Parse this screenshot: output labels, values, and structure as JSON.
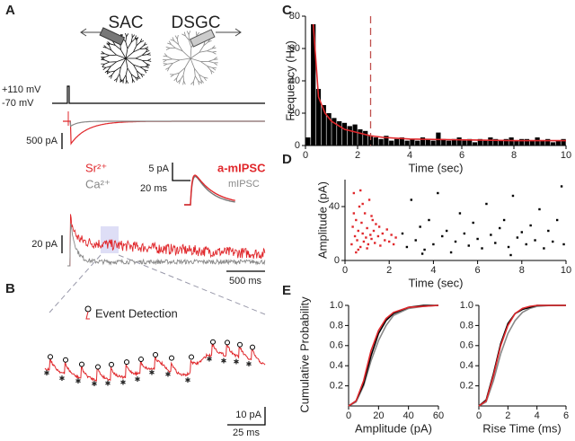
{
  "panel_labels": [
    "A",
    "B",
    "C",
    "D",
    "E"
  ],
  "panel_a": {
    "cells": [
      "SAC",
      "DSGC"
    ],
    "voltage_levels": [
      "+110 mV",
      "-70 mV"
    ],
    "current_scale": "500 pA",
    "ions": [
      "Sr²⁺",
      "Ca²⁺"
    ],
    "inset_scale": [
      "5 pA",
      "20 ms"
    ],
    "inset_legend": [
      "a-mIPSC",
      "mIPSC"
    ],
    "trace_scale": [
      "20 pA",
      "500 ms"
    ]
  },
  "panel_b": {
    "legend": "Event Detection",
    "scale": [
      "10 pA",
      "25 ms"
    ]
  },
  "chart_data": [
    {
      "type": "histogram",
      "xlabel": "Time (sec)",
      "ylabel": "Frequency (Hz)",
      "color": "#000000",
      "bins": [
        0,
        0.2,
        0.4,
        0.6,
        0.8,
        1,
        1.2,
        1.4,
        1.6,
        1.8,
        2,
        2.2,
        2.4,
        2.6,
        2.8,
        3,
        3.2,
        3.4,
        3.6,
        3.8,
        4,
        4.2,
        4.4,
        4.6,
        4.8,
        5,
        5.2,
        5.4,
        5.6,
        5.8,
        6,
        6.2,
        6.4,
        6.6,
        6.8,
        7,
        7.2,
        7.4,
        7.6,
        7.8,
        8,
        8.2,
        8.4,
        8.6,
        8.8,
        9,
        9.2,
        9.4,
        9.6,
        9.8,
        10
      ],
      "counts": [
        5,
        75,
        35,
        25,
        20,
        17,
        15,
        14,
        12,
        13,
        10,
        9,
        6,
        5,
        4,
        6,
        3,
        4,
        5,
        3,
        4,
        3,
        5,
        4,
        3,
        8,
        4,
        3,
        4,
        5,
        3,
        4,
        2,
        4,
        3,
        5,
        4,
        3,
        4,
        5,
        3,
        4,
        4,
        3,
        5,
        3,
        4,
        2,
        3,
        4
      ],
      "series": [
        {
          "color": "#e0272b",
          "x": [
            0.3,
            0.5,
            0.75,
            1,
            1.5,
            2,
            2.5,
            3,
            4,
            6,
            8,
            10
          ],
          "values": [
            75,
            30,
            20,
            15,
            10,
            8,
            6,
            5,
            4,
            3.5,
            3,
            3
          ]
        }
      ],
      "vline": 2.5,
      "vline_color": "#c0504d",
      "xlim": [
        0,
        10
      ],
      "xticks": [
        0,
        2,
        4,
        6,
        8,
        10
      ],
      "ylim": [
        0,
        80
      ],
      "yticks": [
        0,
        20,
        40,
        60,
        80
      ]
    },
    {
      "type": "scatter",
      "xlabel": "Time (sec)",
      "ylabel": "Amplitude (pA)",
      "series": [
        {
          "color": "#e0272b",
          "x": [
            0.3,
            0.35,
            0.4,
            0.45,
            0.5,
            0.55,
            0.6,
            0.65,
            0.7,
            0.75,
            0.8,
            0.85,
            0.9,
            0.95,
            1.0,
            1.05,
            1.1,
            1.15,
            1.2,
            1.25,
            1.3,
            1.35,
            1.4,
            1.5,
            1.55,
            1.6,
            1.7,
            1.8,
            1.9,
            2.0,
            2.1,
            2.2,
            2.3,
            0.4,
            0.6,
            0.8,
            1.0,
            1.2,
            0.5,
            0.7
          ],
          "values": [
            12,
            25,
            50,
            18,
            30,
            15,
            22,
            40,
            10,
            28,
            20,
            14,
            35,
            17,
            24,
            12,
            45,
            19,
            16,
            30,
            22,
            13,
            27,
            18,
            25,
            11,
            20,
            15,
            23,
            14,
            19,
            12,
            17,
            35,
            8,
            42,
            9,
            33,
            6,
            52
          ]
        },
        {
          "color": "#000000",
          "x": [
            2.6,
            2.8,
            3.0,
            3.2,
            3.4,
            3.6,
            3.8,
            4.0,
            4.2,
            4.4,
            4.6,
            4.8,
            5.0,
            5.2,
            5.4,
            5.6,
            5.8,
            6.0,
            6.2,
            6.4,
            6.6,
            6.8,
            7.0,
            7.2,
            7.4,
            7.6,
            7.8,
            8.0,
            8.2,
            8.4,
            8.6,
            8.8,
            9.0,
            9.2,
            9.4,
            9.6,
            9.8,
            9.9,
            3.5,
            7.5
          ],
          "values": [
            20,
            10,
            45,
            15,
            25,
            8,
            30,
            12,
            50,
            18,
            22,
            6,
            14,
            35,
            20,
            11,
            28,
            16,
            9,
            42,
            19,
            13,
            24,
            30,
            10,
            48,
            17,
            21,
            12,
            26,
            15,
            38,
            9,
            22,
            14,
            30,
            55,
            12,
            5,
            4
          ]
        }
      ],
      "xlim": [
        0,
        10
      ],
      "xticks": [
        0,
        2,
        4,
        6,
        8,
        10
      ],
      "ylim": [
        0,
        60
      ],
      "yticks": [
        0,
        40
      ]
    },
    {
      "type": "line",
      "xlabel": "Amplitude (pA)",
      "ylabel": "Cumulative Probability",
      "x": [
        0,
        5,
        10,
        15,
        20,
        25,
        30,
        40,
        50,
        60
      ],
      "series": [
        {
          "color": "#888888",
          "values": [
            0,
            0.04,
            0.2,
            0.45,
            0.65,
            0.8,
            0.9,
            0.97,
            0.99,
            1
          ]
        },
        {
          "color": "#000000",
          "values": [
            0,
            0.05,
            0.22,
            0.5,
            0.72,
            0.85,
            0.92,
            0.98,
            1,
            1
          ]
        },
        {
          "color": "#e0272b",
          "values": [
            0,
            0.05,
            0.25,
            0.55,
            0.75,
            0.87,
            0.93,
            0.98,
            0.99,
            1
          ]
        }
      ],
      "xlim": [
        0,
        60
      ],
      "xticks": [
        0,
        20,
        40,
        60
      ],
      "ylim": [
        0,
        1
      ],
      "yticks": [
        0.2,
        0.4,
        0.6,
        0.8,
        {
          "value": 1,
          "label": "1.0"
        }
      ]
    },
    {
      "type": "line",
      "xlabel": "Rise Time (ms)",
      "x": [
        0,
        0.5,
        1,
        1.5,
        2,
        2.5,
        3,
        3.5,
        4,
        5,
        6
      ],
      "series": [
        {
          "color": "#888888",
          "values": [
            0,
            0.04,
            0.25,
            0.52,
            0.72,
            0.85,
            0.93,
            0.97,
            0.99,
            1,
            1
          ]
        },
        {
          "color": "#000000",
          "values": [
            0,
            0.06,
            0.32,
            0.62,
            0.82,
            0.92,
            0.96,
            0.98,
            1,
            1,
            1
          ]
        },
        {
          "color": "#e0272b",
          "values": [
            0,
            0.05,
            0.3,
            0.6,
            0.8,
            0.92,
            0.97,
            0.99,
            1,
            1,
            1
          ]
        }
      ],
      "xlim": [
        0,
        6
      ],
      "xticks": [
        0,
        2,
        4,
        6
      ],
      "ylim": [
        0,
        1
      ],
      "yticks": [
        0.2,
        0.4,
        0.6,
        0.8,
        {
          "value": 1,
          "label": "1.0"
        }
      ]
    }
  ]
}
